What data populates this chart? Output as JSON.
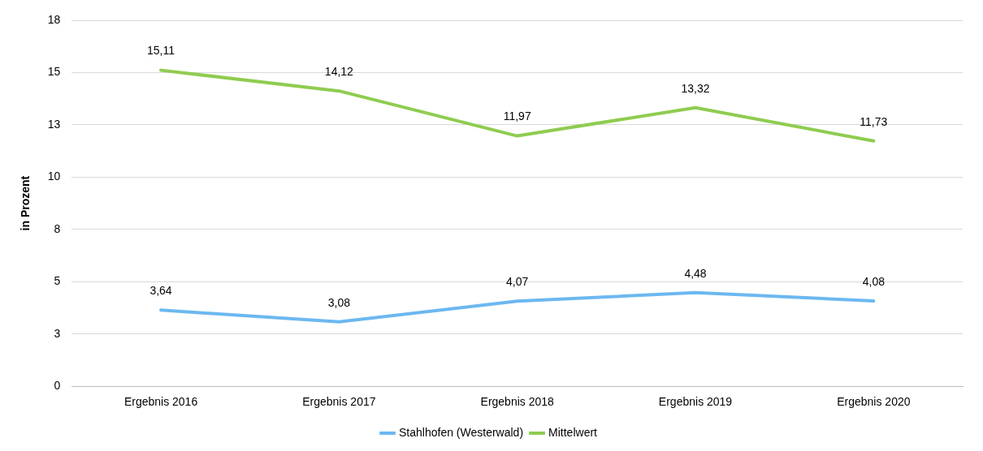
{
  "chart_data": {
    "type": "line",
    "ylabel": "in Prozent",
    "categories": [
      "Ergebnis 2016",
      "Ergebnis 2017",
      "Ergebnis 2018",
      "Ergebnis 2019",
      "Ergebnis 2020"
    ],
    "series": [
      {
        "name": "Stahlhofen (Westerwald)",
        "color": "#6cb8f0",
        "values": [
          3.64,
          3.08,
          4.07,
          4.48,
          4.08
        ],
        "value_labels": [
          "3,64",
          "3,08",
          "4,07",
          "4,48",
          "4,08"
        ]
      },
      {
        "name": "Mittelwert",
        "color": "#8fcc50",
        "values": [
          15.11,
          14.12,
          11.97,
          13.32,
          11.73
        ],
        "value_labels": [
          "15,11",
          "14,12",
          "11,97",
          "13,32",
          "11,73"
        ]
      }
    ],
    "ylim": [
      0,
      17.5
    ],
    "yticks": [
      0,
      {
        "value": 2.5,
        "label": "3"
      },
      5,
      {
        "value": 7.5,
        "label": "8"
      },
      10,
      {
        "value": 12.5,
        "label": "13"
      },
      15,
      {
        "value": 17.5,
        "label": "18"
      }
    ],
    "grid": "y",
    "legend": "bottom",
    "marker": "none",
    "line_style": "solid"
  }
}
